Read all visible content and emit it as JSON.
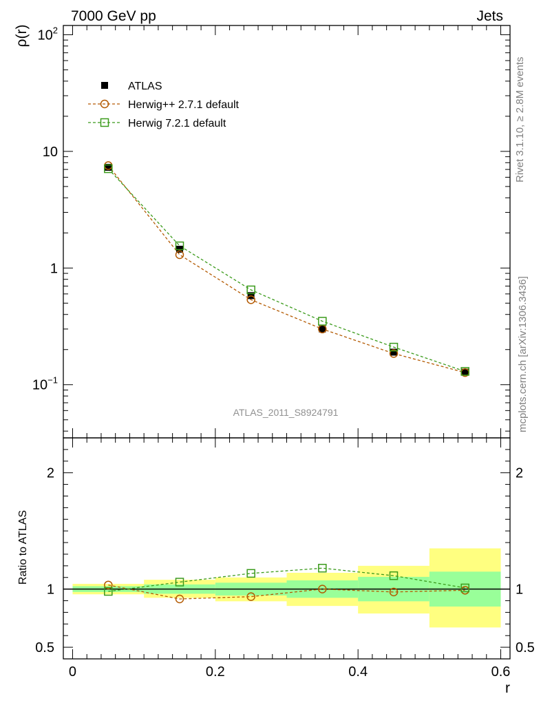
{
  "header": {
    "left": "7000 GeV pp",
    "right": "Jets"
  },
  "side_labels": {
    "rivet": "Rivet 3.1.10, ≥ 2.8M events",
    "mcplots": "mcplots.cern.ch [arXiv:1306.3436]"
  },
  "analysis_id": "ATLAS_2011_S8924791",
  "colors": {
    "atlas": "#000000",
    "herwigpp": "#b35900",
    "herwig7": "#3a9a1a",
    "band_yellow": "#ffff80",
    "band_green": "#99ff99"
  },
  "chart_data": {
    "type": "line",
    "top_panel": {
      "ylabel": "ρ(r)",
      "yscale": "log",
      "ylim": [
        0.035,
        120
      ],
      "yticks": [
        {
          "value": 100,
          "label": "10",
          "sup": "2"
        },
        {
          "value": 10,
          "label": "10",
          "sup": ""
        },
        {
          "value": 1,
          "label": "1",
          "sup": ""
        },
        {
          "value": 0.1,
          "label": "10",
          "sup": "−1"
        }
      ]
    },
    "bottom_panel": {
      "ylabel": "Ratio to ATLAS",
      "ylim": [
        0.4,
        2.3
      ],
      "yticks": [
        {
          "value": 0.5,
          "label": "0.5"
        },
        {
          "value": 1,
          "label": "1"
        },
        {
          "value": 2,
          "label": "2"
        }
      ],
      "bands": [
        {
          "x": [
            0.0,
            0.1
          ],
          "yellow": [
            0.955,
            1.045
          ],
          "green": [
            0.975,
            1.025
          ]
        },
        {
          "x": [
            0.1,
            0.2
          ],
          "yellow": [
            0.925,
            1.08
          ],
          "green": [
            0.96,
            1.04
          ]
        },
        {
          "x": [
            0.2,
            0.3
          ],
          "yellow": [
            0.895,
            1.1
          ],
          "green": [
            0.945,
            1.055
          ]
        },
        {
          "x": [
            0.3,
            0.4
          ],
          "yellow": [
            0.855,
            1.14
          ],
          "green": [
            0.925,
            1.075
          ]
        },
        {
          "x": [
            0.4,
            0.5
          ],
          "yellow": [
            0.79,
            1.2
          ],
          "green": [
            0.895,
            1.105
          ]
        },
        {
          "x": [
            0.5,
            0.6
          ],
          "yellow": [
            0.67,
            1.35
          ],
          "green": [
            0.85,
            1.15
          ]
        }
      ]
    },
    "xlabel": "r",
    "xlim": [
      -0.013,
      0.613
    ],
    "xticks": [
      {
        "value": 0,
        "label": "0"
      },
      {
        "value": 0.2,
        "label": "0.2"
      },
      {
        "value": 0.4,
        "label": "0.4"
      },
      {
        "value": 0.6,
        "label": "0.6"
      }
    ],
    "x": [
      0.05,
      0.15,
      0.25,
      0.35,
      0.45,
      0.55
    ],
    "series": [
      {
        "name": "ATLAS",
        "marker": "filled-square",
        "values": [
          7.3,
          1.45,
          0.58,
          0.3,
          0.19,
          0.128
        ],
        "ratio": [
          1,
          1,
          1,
          1,
          1,
          1
        ]
      },
      {
        "name": "Herwig++ 2.7.1 default",
        "marker": "open-circle",
        "values": [
          7.55,
          1.3,
          0.535,
          0.3,
          0.185,
          0.127
        ],
        "ratio": [
          1.035,
          0.915,
          0.935,
          1.0,
          0.975,
          0.99
        ]
      },
      {
        "name": "Herwig 7.2.1 default",
        "marker": "open-square",
        "values": [
          7.1,
          1.55,
          0.65,
          0.35,
          0.21,
          0.13
        ],
        "ratio": [
          0.98,
          1.06,
          1.135,
          1.18,
          1.115,
          1.01
        ]
      }
    ],
    "legend_position": "top-left",
    "grid": false
  }
}
